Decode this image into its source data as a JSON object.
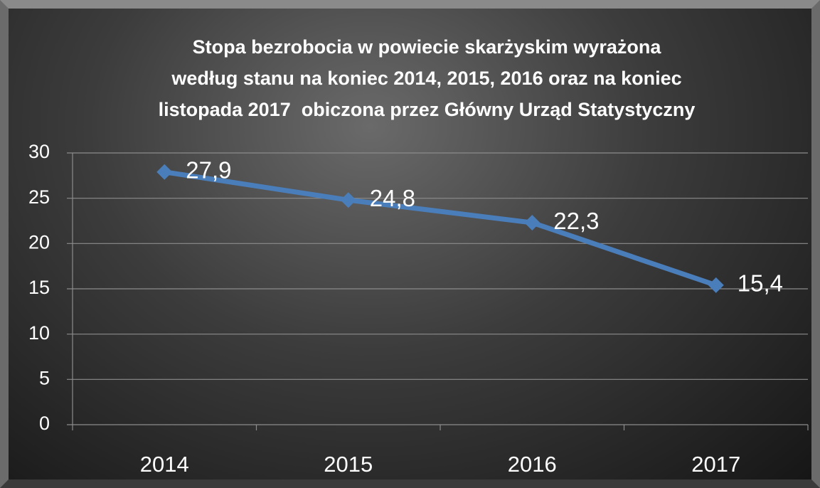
{
  "chart_data": {
    "type": "line",
    "title": "Stopa bezrobocia w powiecie skarżyskim wyrażona\nwedług stanu na koniec 2014, 2015, 2016 oraz na koniec\nlistopada 2017  obiczona przez Główny Urząd Statystyczny",
    "categories": [
      "2014",
      "2015",
      "2016",
      "2017"
    ],
    "series": [
      {
        "name": "Stopa bezrobocia",
        "color": "#4a7ebb",
        "values": [
          27.9,
          24.8,
          22.3,
          15.4
        ],
        "value_labels": [
          "27,9",
          "24,8",
          "22,3",
          "15,4"
        ]
      }
    ],
    "ylim": [
      0,
      30
    ],
    "yticks": [
      0,
      5,
      10,
      15,
      20,
      25,
      30
    ],
    "grid": true
  }
}
